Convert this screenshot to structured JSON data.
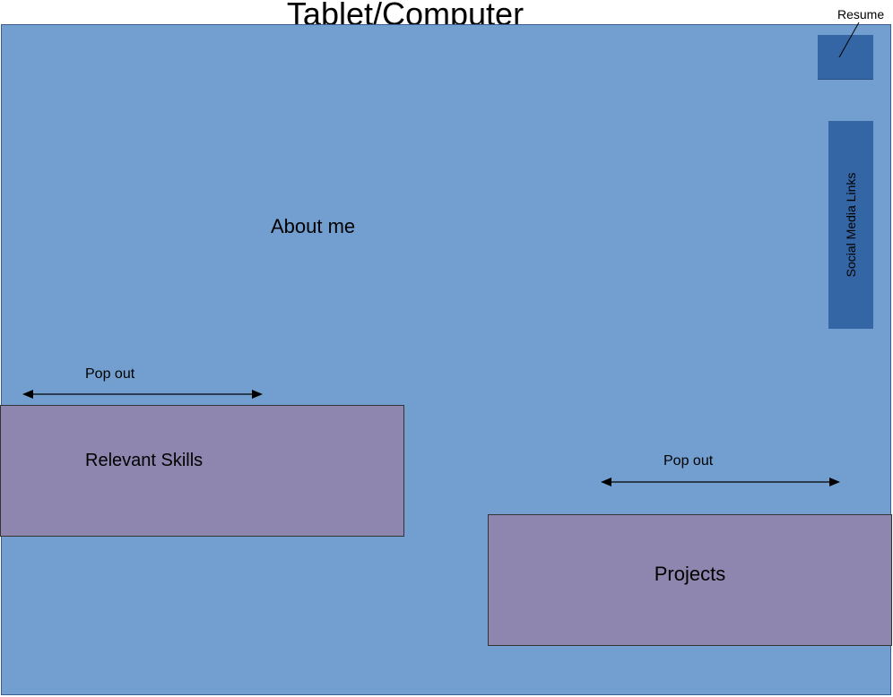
{
  "title": "Tablet/Computer",
  "about": {
    "label": "About me"
  },
  "resume": {
    "label": "Resume"
  },
  "social": {
    "label": "Social Media Links"
  },
  "skills": {
    "label": "Relevant Skills",
    "popout_label": "Pop out"
  },
  "projects": {
    "label": "Projects",
    "popout_label": "Pop out"
  },
  "colors": {
    "page_background": "#729fcf",
    "accent_box": "#3465a4",
    "section_box": "#8e86ae"
  }
}
